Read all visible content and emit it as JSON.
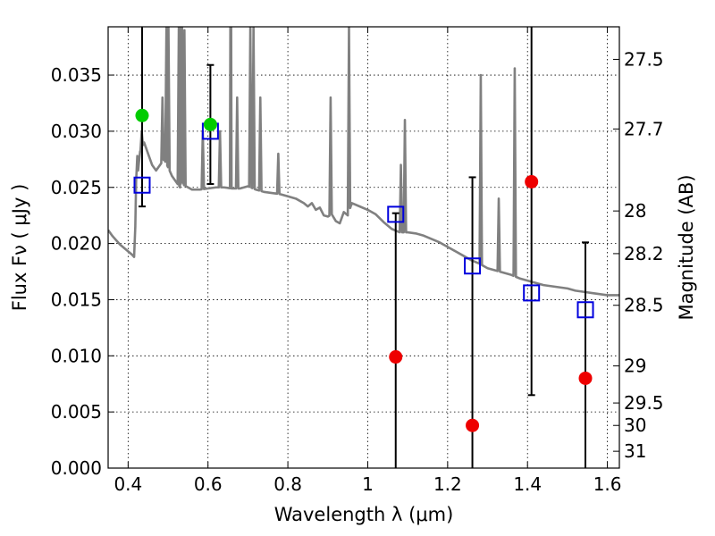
{
  "chart_data": {
    "type": "scatter",
    "xlabel": "Wavelength  λ (μm)",
    "ylabel": "Flux  Fν  ( μJy )",
    "ylabel_right": "Magnitude (AB)",
    "xlim": [
      0.35,
      1.63
    ],
    "ylim": [
      0.0,
      0.0393
    ],
    "grid": true,
    "x_ticks": [
      0.4,
      0.6,
      0.8,
      1.0,
      1.2,
      1.4,
      1.6
    ],
    "x_tick_labels": [
      "0.4",
      "0.6",
      "0.8",
      "1",
      "1.2",
      "1.4",
      "1.6"
    ],
    "y_ticks": [
      0.0,
      0.005,
      0.01,
      0.015,
      0.02,
      0.025,
      0.03,
      0.035
    ],
    "y_tick_labels": [
      "0.000",
      "0.005",
      "0.010",
      "0.015",
      "0.020",
      "0.025",
      "0.030",
      "0.035"
    ],
    "right_ticks": [
      {
        "label": "27.5",
        "flux": 0.0364
      },
      {
        "label": "27.7",
        "flux": 0.0302
      },
      {
        "label": "28",
        "flux": 0.0229
      },
      {
        "label": "28.2",
        "flux": 0.0191
      },
      {
        "label": "28.5",
        "flux": 0.0145
      },
      {
        "label": "29",
        "flux": 0.0091
      },
      {
        "label": "29.5",
        "flux": 0.0058
      },
      {
        "label": "30",
        "flux": 0.0038
      },
      {
        "label": "31",
        "flux": 0.0015
      }
    ],
    "series": [
      {
        "kind": "model_spectrum",
        "color": "#808080",
        "x": [
          0.35,
          0.36,
          0.37,
          0.38,
          0.39,
          0.4,
          0.41,
          0.415,
          0.418,
          0.42,
          0.423,
          0.425,
          0.43,
          0.44,
          0.45,
          0.46,
          0.47,
          0.48,
          0.49,
          0.5,
          0.51,
          0.52,
          0.53,
          0.535,
          0.54,
          0.55,
          0.56,
          0.58,
          0.6,
          0.62,
          0.64,
          0.66,
          0.68,
          0.7,
          0.72,
          0.74,
          0.76,
          0.78,
          0.8,
          0.82,
          0.84,
          0.85,
          0.86,
          0.87,
          0.88,
          0.89,
          0.9,
          0.91,
          0.92,
          0.93,
          0.94,
          0.95,
          0.96,
          0.98,
          1.0,
          1.02,
          1.04,
          1.06,
          1.08,
          1.1,
          1.12,
          1.14,
          1.16,
          1.18,
          1.2,
          1.22,
          1.24,
          1.26,
          1.28,
          1.3,
          1.32,
          1.34,
          1.36,
          1.38,
          1.4,
          1.42,
          1.44,
          1.46,
          1.48,
          1.5,
          1.52,
          1.54,
          1.56,
          1.58,
          1.6,
          1.63
        ],
        "y": [
          0.0212,
          0.0207,
          0.0203,
          0.0199,
          0.0196,
          0.0193,
          0.019,
          0.0188,
          0.0215,
          0.0255,
          0.0278,
          0.0265,
          0.0282,
          0.029,
          0.028,
          0.027,
          0.0265,
          0.027,
          0.0275,
          0.0268,
          0.026,
          0.0255,
          0.025,
          0.0258,
          0.0252,
          0.025,
          0.0248,
          0.0248,
          0.0249,
          0.025,
          0.025,
          0.0249,
          0.0249,
          0.0251,
          0.0248,
          0.0246,
          0.0245,
          0.0244,
          0.0242,
          0.024,
          0.0236,
          0.0233,
          0.0236,
          0.023,
          0.0232,
          0.0225,
          0.0224,
          0.0226,
          0.022,
          0.0218,
          0.0228,
          0.0225,
          0.0236,
          0.0233,
          0.023,
          0.0226,
          0.0219,
          0.0213,
          0.021,
          0.021,
          0.0209,
          0.0207,
          0.0204,
          0.0201,
          0.0197,
          0.0193,
          0.0189,
          0.0185,
          0.0182,
          0.0178,
          0.0176,
          0.0174,
          0.0172,
          0.0169,
          0.0167,
          0.0165,
          0.0163,
          0.0162,
          0.0161,
          0.016,
          0.0158,
          0.0157,
          0.0156,
          0.0155,
          0.0154,
          0.0154
        ],
        "emission_lines": [
          {
            "x": 0.434,
            "peak": 0.03
          },
          {
            "x": 0.486,
            "peak": 0.033
          },
          {
            "x": 0.496,
            "peak": 0.0393
          },
          {
            "x": 0.501,
            "peak": 0.0393
          },
          {
            "x": 0.527,
            "peak": 0.0393
          },
          {
            "x": 0.531,
            "peak": 0.0393
          },
          {
            "x": 0.535,
            "peak": 0.0393
          },
          {
            "x": 0.541,
            "peak": 0.039
          },
          {
            "x": 0.587,
            "peak": 0.03
          },
          {
            "x": 0.63,
            "peak": 0.03
          },
          {
            "x": 0.656,
            "peak": 0.0393
          },
          {
            "x": 0.658,
            "peak": 0.0393
          },
          {
            "x": 0.673,
            "peak": 0.033
          },
          {
            "x": 0.706,
            "peak": 0.0393
          },
          {
            "x": 0.714,
            "peak": 0.0393
          },
          {
            "x": 0.731,
            "peak": 0.033
          },
          {
            "x": 0.776,
            "peak": 0.028
          },
          {
            "x": 0.907,
            "peak": 0.033
          },
          {
            "x": 0.953,
            "peak": 0.0393
          },
          {
            "x": 1.093,
            "peak": 0.031
          },
          {
            "x": 1.083,
            "peak": 0.027
          },
          {
            "x": 1.283,
            "peak": 0.035
          },
          {
            "x": 1.328,
            "peak": 0.024
          },
          {
            "x": 1.368,
            "peak": 0.0356
          }
        ]
      },
      {
        "kind": "model_photometry",
        "marker": "open-square",
        "color": "#0000dd",
        "x": [
          0.435,
          0.606,
          1.07,
          1.262,
          1.41,
          1.545
        ],
        "y": [
          0.0252,
          0.03,
          0.0226,
          0.018,
          0.0156,
          0.0141
        ]
      },
      {
        "kind": "detections",
        "marker": "filled-circle",
        "color": "#00cc00",
        "x": [
          0.435,
          0.606
        ],
        "y": [
          0.0314,
          0.0306
        ],
        "err_low": [
          0.0233,
          0.0253
        ],
        "err_high": [
          0.0393,
          0.0359
        ]
      },
      {
        "kind": "non_detections",
        "marker": "filled-circle",
        "color": "#ee0000",
        "x": [
          1.07,
          1.262,
          1.41,
          1.545
        ],
        "y": [
          0.0099,
          0.0038,
          0.0255,
          0.008
        ],
        "err_low": [
          0.0,
          0.0,
          0.0065,
          0.0
        ],
        "err_high": [
          0.0227,
          0.0259,
          0.0393,
          0.0201
        ]
      }
    ]
  }
}
